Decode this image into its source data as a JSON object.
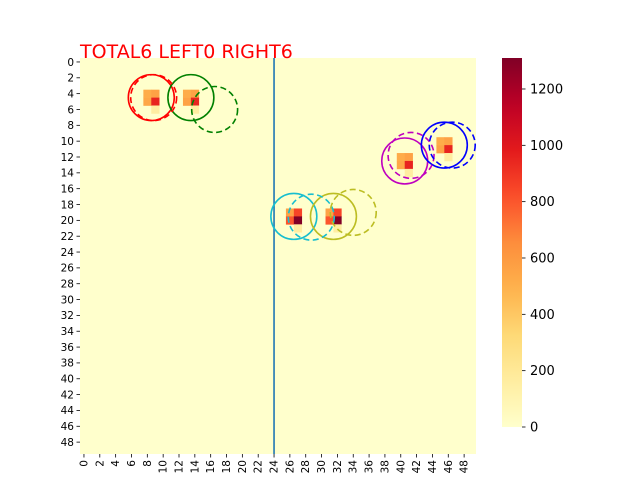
{
  "chart_data": {
    "type": "heatmap",
    "title": "TOTAL6  LEFT0 RIGHT6",
    "title_color": "#ff0000",
    "grid_size": [
      50,
      50
    ],
    "x_ticks": [
      "0",
      "2",
      "4",
      "6",
      "8",
      "10",
      "12",
      "14",
      "16",
      "18",
      "20",
      "22",
      "24",
      "26",
      "28",
      "30",
      "32",
      "34",
      "36",
      "38",
      "40",
      "42",
      "44",
      "46",
      "48"
    ],
    "y_ticks": [
      "0",
      "2",
      "4",
      "6",
      "8",
      "10",
      "12",
      "14",
      "16",
      "18",
      "20",
      "22",
      "24",
      "26",
      "28",
      "30",
      "32",
      "34",
      "36",
      "38",
      "40",
      "42",
      "44",
      "46",
      "48"
    ],
    "colormap": "YlOrRd",
    "colorbar": {
      "min": 0,
      "max": 1310,
      "ticks": [
        "0",
        "200",
        "400",
        "600",
        "800",
        "1000",
        "1200"
      ]
    },
    "background_value": 0,
    "divider_line": {
      "x": 24.5,
      "color": "#1f77b4"
    },
    "cells": [
      {
        "x": 8,
        "y": 4,
        "value": 520
      },
      {
        "x": 9,
        "y": 4,
        "value": 560
      },
      {
        "x": 8,
        "y": 5,
        "value": 540
      },
      {
        "x": 9,
        "y": 5,
        "value": 950
      },
      {
        "x": 9,
        "y": 6,
        "value": 160
      },
      {
        "x": 13,
        "y": 4,
        "value": 520
      },
      {
        "x": 14,
        "y": 4,
        "value": 560
      },
      {
        "x": 13,
        "y": 5,
        "value": 560
      },
      {
        "x": 14,
        "y": 5,
        "value": 950
      },
      {
        "x": 14,
        "y": 6,
        "value": 160
      },
      {
        "x": 26,
        "y": 19,
        "value": 560
      },
      {
        "x": 27,
        "y": 19,
        "value": 850
      },
      {
        "x": 26,
        "y": 20,
        "value": 800
      },
      {
        "x": 27,
        "y": 20,
        "value": 1310
      },
      {
        "x": 27,
        "y": 21,
        "value": 160
      },
      {
        "x": 31,
        "y": 19,
        "value": 560
      },
      {
        "x": 32,
        "y": 19,
        "value": 850
      },
      {
        "x": 31,
        "y": 20,
        "value": 800
      },
      {
        "x": 32,
        "y": 20,
        "value": 1310
      },
      {
        "x": 32,
        "y": 21,
        "value": 160
      },
      {
        "x": 40,
        "y": 12,
        "value": 520
      },
      {
        "x": 41,
        "y": 12,
        "value": 560
      },
      {
        "x": 40,
        "y": 13,
        "value": 540
      },
      {
        "x": 41,
        "y": 13,
        "value": 950
      },
      {
        "x": 41,
        "y": 14,
        "value": 160
      },
      {
        "x": 45,
        "y": 10,
        "value": 520
      },
      {
        "x": 46,
        "y": 10,
        "value": 560
      },
      {
        "x": 45,
        "y": 11,
        "value": 560
      },
      {
        "x": 46,
        "y": 11,
        "value": 950
      },
      {
        "x": 46,
        "y": 12,
        "value": 160
      }
    ],
    "solid_circles": [
      {
        "cx": 9,
        "cy": 5,
        "r": 2.9,
        "color": "#ff0000"
      },
      {
        "cx": 14,
        "cy": 5,
        "r": 2.9,
        "color": "#008000"
      },
      {
        "cx": 27,
        "cy": 20,
        "r": 2.9,
        "color": "#17becf"
      },
      {
        "cx": 32,
        "cy": 20,
        "r": 2.9,
        "color": "#bcbd22"
      },
      {
        "cx": 41,
        "cy": 13,
        "r": 2.9,
        "color": "#bf00bf"
      },
      {
        "cx": 46,
        "cy": 11,
        "r": 2.9,
        "color": "#0000ff"
      }
    ],
    "dashed_circles": [
      {
        "cx": 9.3,
        "cy": 5.0,
        "r": 2.9,
        "color": "#ff0000"
      },
      {
        "cx": 17,
        "cy": 6.5,
        "r": 2.9,
        "color": "#008000"
      },
      {
        "cx": 29.2,
        "cy": 20.1,
        "r": 2.9,
        "color": "#17becf"
      },
      {
        "cx": 34.5,
        "cy": 19.5,
        "r": 2.9,
        "color": "#bcbd22"
      },
      {
        "cx": 41.8,
        "cy": 12.3,
        "r": 2.9,
        "color": "#bf00bf"
      },
      {
        "cx": 47,
        "cy": 11,
        "r": 2.9,
        "color": "#0000ff"
      }
    ]
  }
}
